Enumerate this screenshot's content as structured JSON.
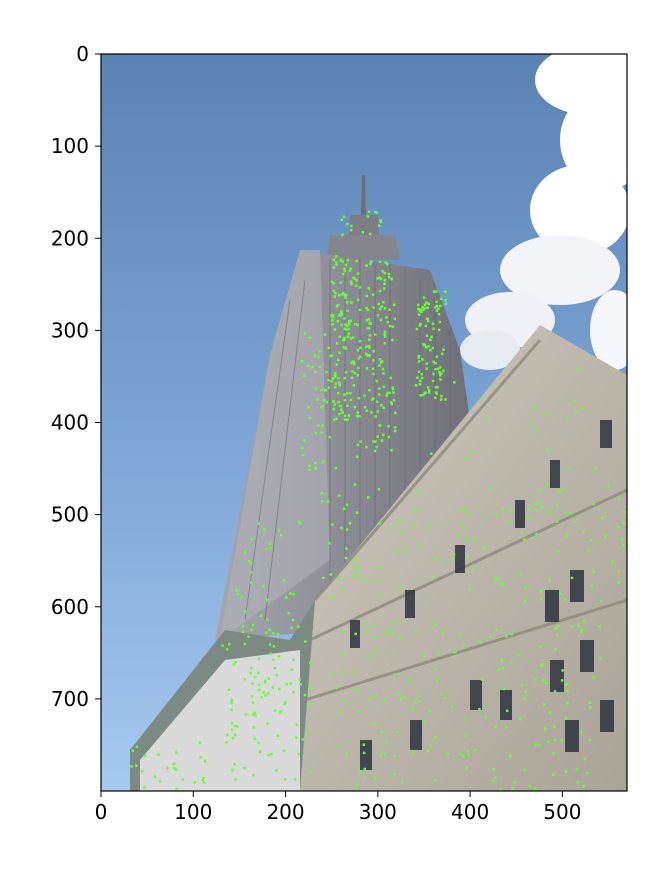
{
  "figure": {
    "type": "image-plot",
    "image_subject": "Low-angle photo of a tall Art Deco skyscraper with an ornate stone office building in the foreground, annotated with many small green feature-point markers",
    "marker_color": "#66ff33",
    "colors": {
      "sky_top": "#5d86b6",
      "sky_bottom": "#9fc3ec",
      "tower": "#8f8f98",
      "foreground_building": "#c9c4b8",
      "cloud": "#ffffff"
    }
  },
  "chart_data": {
    "type": "image",
    "x_ticks": [
      "0",
      "100",
      "200",
      "300",
      "400",
      "500"
    ],
    "y_ticks": [
      "0",
      "100",
      "200",
      "300",
      "400",
      "500",
      "600",
      "700"
    ],
    "xlim": [
      0,
      570
    ],
    "ylim": [
      800,
      0
    ],
    "grid": false
  }
}
